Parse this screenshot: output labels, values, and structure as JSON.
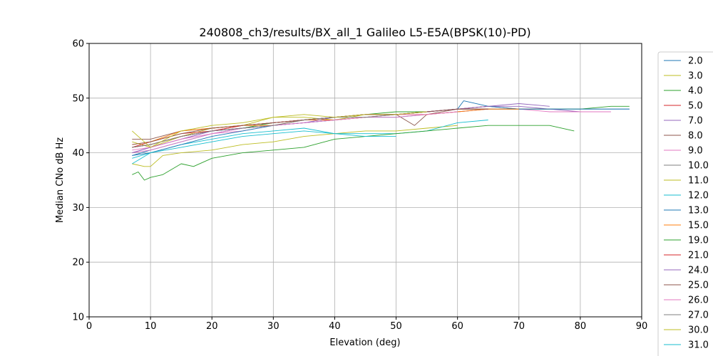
{
  "chart_data": {
    "type": "line",
    "title": "240808_ch3/results/BX_all_1 Galileo L5-E5A(BPSK(10)-PD)",
    "xlabel": "Elevation (deg)",
    "ylabel": "Median CNo dB Hz",
    "xlim": [
      0,
      90
    ],
    "ylim": [
      10,
      60
    ],
    "xticks": [
      0,
      10,
      20,
      30,
      40,
      50,
      60,
      70,
      80,
      90
    ],
    "yticks": [
      10,
      20,
      30,
      40,
      50,
      60
    ],
    "grid": true,
    "legend_position": "right, outside plot",
    "series": [
      {
        "name": "2.0",
        "color": "#1f77b4",
        "x": [
          7,
          10,
          15,
          20,
          25,
          30,
          35,
          40,
          45,
          50,
          55,
          60,
          65,
          70,
          75,
          80,
          85,
          88
        ],
        "y": [
          39.5,
          40.5,
          42,
          43.5,
          44.5,
          45,
          45.5,
          46,
          46.5,
          46.5,
          47,
          47.5,
          48,
          48,
          48,
          48,
          48,
          48
        ]
      },
      {
        "name": "3.0",
        "color": "#bcbd22",
        "x": [
          7,
          10,
          15,
          20,
          25,
          30,
          35,
          40,
          45,
          50,
          55,
          60,
          65,
          70,
          75
        ],
        "y": [
          42,
          41,
          43,
          44.5,
          45,
          46.5,
          46.5,
          46,
          47,
          47,
          47.5,
          48,
          48,
          48,
          48
        ]
      },
      {
        "name": "4.0",
        "color": "#2ca02c",
        "x": [
          7,
          10,
          15,
          20,
          25,
          30,
          35,
          40,
          45,
          50,
          55,
          60,
          65,
          70,
          75,
          80,
          85,
          88
        ],
        "y": [
          41,
          41.5,
          43,
          44,
          44.5,
          45.5,
          46,
          46.5,
          47,
          47.5,
          47.5,
          48,
          48,
          48,
          48,
          48,
          48.5,
          48.5
        ]
      },
      {
        "name": "5.0",
        "color": "#d62728",
        "x": [
          7,
          10,
          15,
          20,
          25,
          30,
          35,
          40,
          45,
          50,
          55,
          60,
          65
        ],
        "y": [
          41,
          42,
          43.5,
          44,
          45,
          45.5,
          46,
          46.5,
          47,
          47,
          47.5,
          48,
          48.5
        ]
      },
      {
        "name": "7.0",
        "color": "#9467bd",
        "x": [
          7,
          10,
          15,
          20,
          25,
          30,
          35,
          40,
          45,
          50,
          55,
          60,
          65,
          70,
          75,
          80
        ],
        "y": [
          40,
          41,
          42.5,
          44,
          44.5,
          45,
          46,
          46.5,
          47,
          47,
          47.5,
          48,
          48.5,
          48.5,
          48,
          47.5
        ]
      },
      {
        "name": "8.0",
        "color": "#8c564b",
        "x": [
          7,
          10,
          15,
          20,
          25,
          30,
          35,
          40,
          45,
          50,
          53,
          55,
          60,
          65,
          70
        ],
        "y": [
          42.5,
          42.5,
          44,
          44.5,
          45,
          45.5,
          46,
          46.5,
          47,
          47,
          45,
          47,
          48,
          48.5,
          48
        ]
      },
      {
        "name": "9.0",
        "color": "#e377c2",
        "x": [
          7,
          10,
          15,
          20,
          25,
          30,
          35,
          40,
          45,
          50,
          55,
          60,
          65,
          70,
          75,
          80,
          85
        ],
        "y": [
          40,
          40.5,
          42,
          43.5,
          44,
          45,
          45.5,
          46,
          46.5,
          46.5,
          47,
          47.5,
          48,
          48,
          47.5,
          47.5,
          47.5
        ]
      },
      {
        "name": "10.0",
        "color": "#7f7f7f",
        "x": [
          7,
          10,
          15,
          20,
          25,
          30,
          35,
          40,
          45,
          50,
          55,
          60,
          65,
          70,
          75
        ],
        "y": [
          41,
          41.5,
          43,
          44,
          44.5,
          45,
          46,
          46.5,
          47,
          47,
          47.5,
          48,
          48,
          48,
          48
        ]
      },
      {
        "name": "11.0",
        "color": "#bcbd22",
        "x": [
          7,
          9,
          10,
          12,
          15,
          20,
          25,
          30,
          35,
          40,
          45,
          50,
          55,
          60
        ],
        "y": [
          38,
          37.5,
          37.5,
          39.5,
          40,
          40.5,
          41.5,
          42,
          43,
          43.5,
          44,
          44,
          44.5,
          45
        ]
      },
      {
        "name": "12.0",
        "color": "#17becf",
        "x": [
          7,
          10,
          15,
          20,
          25,
          30,
          35,
          40,
          45,
          50,
          55,
          60,
          65
        ],
        "y": [
          39,
          40,
          41.5,
          42.5,
          43.5,
          44,
          44.5,
          43.5,
          43.5,
          43.5,
          44,
          45.5,
          46
        ]
      },
      {
        "name": "13.0",
        "color": "#1f77b4",
        "x": [
          7,
          10,
          15,
          20,
          25,
          30,
          35,
          40,
          45,
          50,
          55,
          60,
          61,
          65,
          70,
          75,
          80,
          85,
          88
        ],
        "y": [
          39.5,
          40,
          41.5,
          43,
          44,
          45,
          45.5,
          46,
          46.5,
          47,
          47.5,
          48,
          49.5,
          48.5,
          48,
          48,
          48,
          48,
          48
        ]
      },
      {
        "name": "15.0",
        "color": "#ff7f0e",
        "x": [
          7,
          10,
          15,
          20,
          25,
          30,
          35,
          40,
          45,
          50,
          55,
          60,
          65,
          70
        ],
        "y": [
          41.5,
          42,
          44,
          44.5,
          45,
          45,
          46,
          46,
          46.5,
          47,
          47,
          47.5,
          48,
          48
        ]
      },
      {
        "name": "19.0",
        "color": "#2ca02c",
        "x": [
          7,
          8,
          9,
          10,
          12,
          15,
          17,
          20,
          25,
          30,
          35,
          40,
          45,
          50,
          55,
          60,
          65,
          70,
          75,
          79
        ],
        "y": [
          36,
          36.5,
          35,
          35.5,
          36,
          38,
          37.5,
          39,
          40,
          40.5,
          41,
          42.5,
          43,
          43.5,
          44,
          44.5,
          45,
          45,
          45,
          44
        ]
      },
      {
        "name": "21.0",
        "color": "#d62728",
        "x": [
          7,
          10,
          15,
          20,
          25,
          30,
          35,
          40,
          45,
          50,
          55,
          60,
          65
        ],
        "y": [
          41,
          41.5,
          43,
          44,
          45,
          45.5,
          46,
          46.5,
          47,
          47,
          47.5,
          48,
          48
        ]
      },
      {
        "name": "24.0",
        "color": "#9467bd",
        "x": [
          7,
          10,
          15,
          20,
          25,
          30,
          35,
          40,
          45,
          50,
          55,
          60,
          65,
          70,
          75
        ],
        "y": [
          40,
          41,
          42.5,
          44,
          44.5,
          45,
          45.5,
          46.5,
          47,
          47,
          47.5,
          48,
          48.5,
          49,
          48.5
        ]
      },
      {
        "name": "25.0",
        "color": "#8c564b",
        "x": [
          7,
          10,
          15,
          20,
          25,
          30,
          35,
          40,
          45,
          50,
          55,
          60,
          65
        ],
        "y": [
          41.5,
          42,
          43.5,
          44.5,
          45,
          45.5,
          46,
          46.5,
          47,
          47,
          47.5,
          48,
          48
        ]
      },
      {
        "name": "26.0",
        "color": "#e377c2",
        "x": [
          7,
          10,
          15,
          20,
          25,
          30,
          35,
          40,
          45,
          50,
          55,
          60
        ],
        "y": [
          40.5,
          41,
          42.5,
          43.5,
          44.5,
          45,
          45.5,
          46,
          46.5,
          47,
          47,
          47.5
        ]
      },
      {
        "name": "27.0",
        "color": "#7f7f7f",
        "x": [
          7,
          10,
          15,
          20,
          25,
          30,
          35,
          40,
          45,
          50
        ],
        "y": [
          41,
          41.5,
          43,
          44,
          44.5,
          45,
          46,
          46.5,
          46.5,
          47
        ]
      },
      {
        "name": "30.0",
        "color": "#bcbd22",
        "x": [
          7,
          10,
          15,
          20,
          25,
          30,
          35,
          40,
          45,
          50,
          55
        ],
        "y": [
          44,
          41,
          44,
          45,
          45.5,
          46.5,
          47,
          46.5,
          47,
          47,
          47.5
        ]
      },
      {
        "name": "31.0",
        "color": "#17becf",
        "x": [
          7,
          10,
          15,
          20,
          25,
          30,
          35,
          40,
          45,
          50
        ],
        "y": [
          38,
          40,
          41,
          42,
          43,
          43.5,
          44,
          43.5,
          43,
          43
        ]
      }
    ]
  }
}
